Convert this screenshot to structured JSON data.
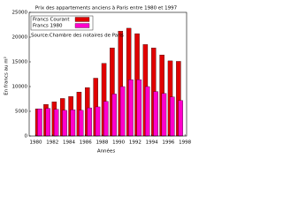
{
  "chart_data": {
    "type": "bar",
    "title": "Prix des appartements anciens à Paris entre 1980 et 1997",
    "annotation": "Source:Chambre des notaires de Paris",
    "x_label": "Années",
    "y_label": "En francs au m²",
    "x": [
      1980,
      1981,
      1982,
      1983,
      1984,
      1985,
      1986,
      1987,
      1988,
      1989,
      1990,
      1991,
      1992,
      1993,
      1994,
      1995,
      1996,
      1997
    ],
    "series": [
      {
        "name": "Francs Courant",
        "color": "#e00000",
        "values": [
          5500,
          6400,
          6900,
          7600,
          8000,
          8900,
          9800,
          11700,
          14700,
          17800,
          21200,
          21800,
          20700,
          18500,
          17800,
          16400,
          15200,
          15100
        ]
      },
      {
        "name": "Francs 1980",
        "color": "#ff00cc",
        "values": [
          5500,
          5600,
          5400,
          5200,
          5300,
          5200,
          5700,
          5900,
          7000,
          8500,
          10000,
          11400,
          11400,
          10000,
          9000,
          8600,
          7900,
          7200
        ]
      }
    ],
    "xlim": [
      1979.2,
      1998.2
    ],
    "xticks": [
      1980,
      1982,
      1984,
      1986,
      1988,
      1990,
      1992,
      1994,
      1996,
      1998
    ],
    "ylim": [
      0,
      25000
    ],
    "yticks": [
      0,
      5000,
      10000,
      15000,
      20000,
      25000
    ],
    "legend": "top-left"
  }
}
